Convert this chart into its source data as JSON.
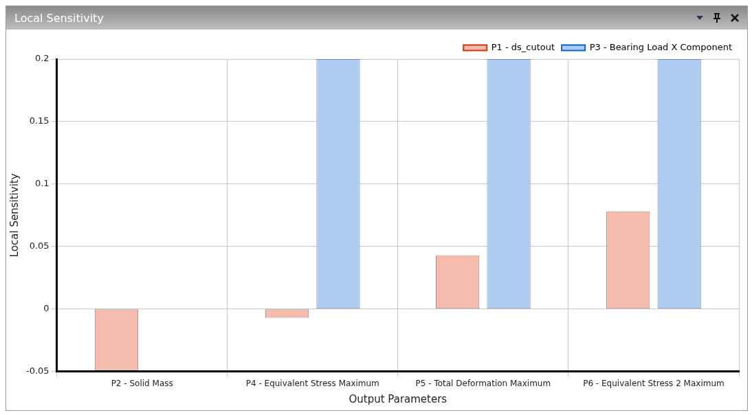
{
  "chart_data": {
    "type": "bar",
    "title": "Local Sensitivity",
    "xlabel": "Output Parameters",
    "ylabel": "Local Sensitivity",
    "categories": [
      "P2 - Solid Mass",
      "P4 - Equivalent Stress Maximum",
      "P5 - Total Deformation Maximum",
      "P6 - Equivalent Stress 2 Maximum"
    ],
    "series": [
      {
        "name": "P1 - ds_cutout",
        "color": "#f5bcae",
        "values": [
          -0.049,
          -0.007,
          0.043,
          0.078
        ]
      },
      {
        "name": "P3 - Bearing Load X Component",
        "color": "#afcdf3",
        "values": [
          0,
          0.2,
          0.2,
          0.2
        ]
      }
    ],
    "ylim": [
      -0.05,
      0.2
    ],
    "yticks": [
      -0.05,
      0,
      0.05,
      0.1,
      0.15,
      0.2
    ],
    "grid": true,
    "legend": "top right"
  }
}
